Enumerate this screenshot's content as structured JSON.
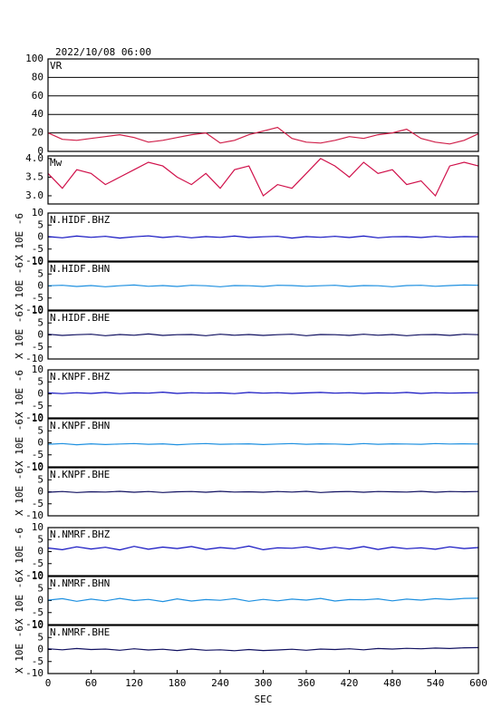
{
  "chart_data": [
    {
      "type": "line",
      "title": "2022/10/08 06:00",
      "label": "VR",
      "color": "#d0204a",
      "grid": true,
      "x": [
        0,
        20,
        40,
        60,
        80,
        100,
        120,
        140,
        160,
        180,
        200,
        220,
        240,
        260,
        280,
        300,
        320,
        340,
        360,
        380,
        400,
        420,
        440,
        460,
        480,
        500,
        520,
        540,
        560,
        580,
        600
      ],
      "values": [
        20,
        13,
        12,
        14,
        16,
        18,
        15,
        10,
        12,
        15,
        18,
        20,
        9,
        12,
        18,
        22,
        26,
        14,
        10,
        9,
        12,
        16,
        14,
        18,
        20,
        24,
        14,
        10,
        8,
        12,
        19
      ],
      "xlim": [
        0,
        600
      ],
      "ylim": [
        0,
        100
      ],
      "yticks": [
        0,
        20,
        40,
        60,
        80,
        100
      ]
    },
    {
      "type": "line",
      "label": "Mw",
      "color": "#d0104a",
      "x": [
        0,
        20,
        40,
        60,
        80,
        100,
        120,
        140,
        160,
        180,
        200,
        220,
        240,
        260,
        280,
        300,
        320,
        340,
        360,
        380,
        400,
        420,
        440,
        460,
        480,
        500,
        520,
        540,
        560,
        580,
        600
      ],
      "values": [
        3.6,
        3.2,
        3.7,
        3.6,
        3.3,
        3.5,
        3.7,
        3.9,
        3.8,
        3.5,
        3.3,
        3.6,
        3.2,
        3.7,
        3.8,
        3.0,
        3.3,
        3.2,
        3.6,
        4.0,
        3.8,
        3.5,
        3.9,
        3.6,
        3.7,
        3.3,
        3.4,
        3.0,
        3.8,
        3.9,
        3.8
      ],
      "xlim": [
        0,
        600
      ],
      "ylim": [
        2.78,
        4.07
      ],
      "yticks": [
        {
          "value": 3,
          "label": "3.0"
        },
        {
          "value": 3.5,
          "label": "3.5"
        },
        {
          "value": 4,
          "label": "4.0"
        }
      ]
    },
    {
      "type": "line",
      "label": "N.HIDF.BHZ",
      "y_label": "X 10E -6",
      "color": "#1010c0",
      "x": [
        0,
        20,
        40,
        60,
        80,
        100,
        120,
        140,
        160,
        180,
        200,
        220,
        240,
        260,
        280,
        300,
        320,
        340,
        360,
        380,
        400,
        420,
        440,
        460,
        480,
        500,
        520,
        540,
        560,
        580,
        600
      ],
      "values": [
        0.2,
        -0.3,
        0.4,
        -0.1,
        0.3,
        -0.4,
        0.1,
        0.5,
        -0.2,
        0.3,
        -0.3,
        0.2,
        -0.1,
        0.4,
        -0.2,
        0.1,
        0.3,
        -0.4,
        0.2,
        -0.1,
        0.3,
        -0.2,
        0.4,
        -0.3,
        0.1,
        0.2,
        -0.2,
        0.3,
        -0.1,
        0.2,
        0.1
      ],
      "xlim": [
        0,
        600
      ],
      "ylim": [
        -10,
        10
      ],
      "yticks": [
        -10,
        -5,
        0,
        5,
        10
      ]
    },
    {
      "type": "line",
      "label": "N.HIDF.BHN",
      "y_label": "X 10E -6",
      "color": "#1e90e0",
      "x": [
        0,
        20,
        40,
        60,
        80,
        100,
        120,
        140,
        160,
        180,
        200,
        220,
        240,
        260,
        280,
        300,
        320,
        340,
        360,
        380,
        400,
        420,
        440,
        460,
        480,
        500,
        520,
        540,
        560,
        580,
        600
      ],
      "values": [
        0.1,
        0.3,
        -0.2,
        0.2,
        -0.3,
        0.1,
        0.4,
        -0.1,
        0.2,
        -0.2,
        0.3,
        0.1,
        -0.3,
        0.2,
        0.1,
        -0.2,
        0.3,
        0.2,
        -0.1,
        0.1,
        0.3,
        -0.2,
        0.2,
        0.1,
        -0.3,
        0.2,
        0.3,
        -0.1,
        0.2,
        0.4,
        0.3
      ],
      "xlim": [
        0,
        600
      ],
      "ylim": [
        -10,
        10
      ],
      "yticks": [
        -10,
        -5,
        0,
        5,
        10
      ]
    },
    {
      "type": "line",
      "label": "N.HIDF.BHE",
      "y_label": "X 10E -6",
      "color": "#101060",
      "x": [
        0,
        20,
        40,
        60,
        80,
        100,
        120,
        140,
        160,
        180,
        200,
        220,
        240,
        260,
        280,
        300,
        320,
        340,
        360,
        380,
        400,
        420,
        440,
        460,
        480,
        500,
        520,
        540,
        560,
        580,
        600
      ],
      "values": [
        0.3,
        -0.2,
        0.1,
        0.3,
        -0.3,
        0.2,
        -0.1,
        0.4,
        -0.2,
        0.1,
        0.2,
        -0.3,
        0.3,
        -0.1,
        0.2,
        -0.2,
        0.1,
        0.3,
        -0.3,
        0.2,
        0.1,
        -0.2,
        0.3,
        -0.1,
        0.2,
        -0.3,
        0.1,
        0.2,
        -0.2,
        0.3,
        0.1
      ],
      "xlim": [
        0,
        600
      ],
      "ylim": [
        -10,
        10
      ],
      "yticks": [
        -10,
        -5,
        0,
        5,
        10
      ]
    },
    {
      "type": "line",
      "label": "N.KNPF.BHZ",
      "y_label": "X 10E -6",
      "color": "#1010c0",
      "x": [
        0,
        20,
        40,
        60,
        80,
        100,
        120,
        140,
        160,
        180,
        200,
        220,
        240,
        260,
        280,
        300,
        320,
        340,
        360,
        380,
        400,
        420,
        440,
        460,
        480,
        500,
        520,
        540,
        560,
        580,
        600
      ],
      "values": [
        0.4,
        0.1,
        0.5,
        0.2,
        0.6,
        0.1,
        0.4,
        0.3,
        0.7,
        0.2,
        0.5,
        0.3,
        0.4,
        0.1,
        0.6,
        0.3,
        0.5,
        0.2,
        0.4,
        0.6,
        0.3,
        0.5,
        0.2,
        0.4,
        0.3,
        0.6,
        0.2,
        0.5,
        0.3,
        0.4,
        0.5
      ],
      "xlim": [
        0,
        600
      ],
      "ylim": [
        -10,
        10
      ],
      "yticks": [
        -10,
        -5,
        0,
        5,
        10
      ]
    },
    {
      "type": "line",
      "label": "N.KNPF.BHN",
      "y_label": "X 10E -6",
      "color": "#1e90e0",
      "x": [
        0,
        20,
        40,
        60,
        80,
        100,
        120,
        140,
        160,
        180,
        200,
        220,
        240,
        260,
        280,
        300,
        320,
        340,
        360,
        380,
        400,
        420,
        440,
        460,
        480,
        500,
        520,
        540,
        560,
        580,
        600
      ],
      "values": [
        -0.6,
        -0.3,
        -0.8,
        -0.4,
        -0.7,
        -0.5,
        -0.3,
        -0.6,
        -0.4,
        -0.8,
        -0.5,
        -0.3,
        -0.6,
        -0.5,
        -0.4,
        -0.7,
        -0.5,
        -0.3,
        -0.6,
        -0.4,
        -0.5,
        -0.7,
        -0.3,
        -0.6,
        -0.4,
        -0.5,
        -0.6,
        -0.3,
        -0.5,
        -0.4,
        -0.5
      ],
      "xlim": [
        0,
        600
      ],
      "ylim": [
        -10,
        10
      ],
      "yticks": [
        -10,
        -5,
        0,
        5,
        10
      ]
    },
    {
      "type": "line",
      "label": "N.KNPF.BHE",
      "y_label": "X 10E -6",
      "color": "#101060",
      "x": [
        0,
        20,
        40,
        60,
        80,
        100,
        120,
        140,
        160,
        180,
        200,
        220,
        240,
        260,
        280,
        300,
        320,
        340,
        360,
        380,
        400,
        420,
        440,
        460,
        480,
        500,
        520,
        540,
        560,
        580,
        600
      ],
      "values": [
        -0.2,
        0.1,
        -0.3,
        0.0,
        -0.1,
        0.2,
        -0.2,
        0.1,
        -0.3,
        0.0,
        0.1,
        -0.2,
        0.2,
        -0.1,
        0.0,
        -0.2,
        0.1,
        -0.1,
        0.2,
        -0.3,
        0.0,
        0.1,
        -0.2,
        0.1,
        0.0,
        -0.1,
        0.2,
        -0.2,
        0.1,
        0.0,
        0.1
      ],
      "xlim": [
        0,
        600
      ],
      "ylim": [
        -10,
        10
      ],
      "yticks": [
        -10,
        -5,
        0,
        5,
        10
      ]
    },
    {
      "type": "line",
      "label": "N.NMRF.BHZ",
      "y_label": "X 10E -6",
      "color": "#1010c0",
      "x": [
        0,
        20,
        40,
        60,
        80,
        100,
        120,
        140,
        160,
        180,
        200,
        220,
        240,
        260,
        280,
        300,
        320,
        340,
        360,
        380,
        400,
        420,
        440,
        460,
        480,
        500,
        520,
        540,
        560,
        580,
        600
      ],
      "values": [
        1.5,
        0.8,
        2.0,
        1.1,
        1.8,
        0.7,
        2.2,
        1.0,
        1.9,
        1.3,
        2.1,
        0.9,
        1.7,
        1.2,
        2.3,
        0.8,
        1.6,
        1.4,
        2.0,
        1.0,
        1.8,
        1.1,
        2.1,
        0.9,
        1.9,
        1.2,
        1.6,
        1.0,
        2.0,
        1.3,
        1.7
      ],
      "xlim": [
        0,
        600
      ],
      "ylim": [
        -10,
        10
      ],
      "yticks": [
        -10,
        -5,
        0,
        5,
        10
      ]
    },
    {
      "type": "line",
      "label": "N.NMRF.BHN",
      "y_label": "X 10E -6",
      "color": "#1e90e0",
      "x": [
        0,
        20,
        40,
        60,
        80,
        100,
        120,
        140,
        160,
        180,
        200,
        220,
        240,
        260,
        280,
        300,
        320,
        340,
        360,
        380,
        400,
        420,
        440,
        460,
        480,
        500,
        520,
        540,
        560,
        580,
        600
      ],
      "values": [
        0.2,
        0.8,
        -0.3,
        0.6,
        -0.1,
        0.9,
        0.0,
        0.5,
        -0.4,
        0.7,
        -0.2,
        0.4,
        0.1,
        0.8,
        -0.3,
        0.5,
        -0.1,
        0.6,
        0.2,
        0.9,
        -0.2,
        0.4,
        0.3,
        0.7,
        -0.1,
        0.6,
        0.2,
        0.8,
        0.4,
        0.9,
        1.0
      ],
      "xlim": [
        0,
        600
      ],
      "ylim": [
        -10,
        10
      ],
      "yticks": [
        -10,
        -5,
        0,
        5,
        10
      ]
    },
    {
      "type": "line",
      "label": "N.NMRF.BHE",
      "y_label": "X 10E -6",
      "color": "#101060",
      "x": [
        0,
        20,
        40,
        60,
        80,
        100,
        120,
        140,
        160,
        180,
        200,
        220,
        240,
        260,
        280,
        300,
        320,
        340,
        360,
        380,
        400,
        420,
        440,
        460,
        480,
        500,
        520,
        540,
        560,
        580,
        600
      ],
      "values": [
        0.3,
        -0.1,
        0.4,
        0.0,
        0.2,
        -0.3,
        0.3,
        -0.2,
        0.1,
        -0.4,
        0.2,
        -0.3,
        -0.1,
        -0.5,
        0.0,
        -0.4,
        -0.2,
        0.1,
        -0.3,
        0.2,
        0.0,
        0.3,
        -0.1,
        0.4,
        0.2,
        0.5,
        0.3,
        0.6,
        0.4,
        0.7,
        0.8
      ],
      "xlim": [
        0,
        600
      ],
      "ylim": [
        -10,
        10
      ],
      "yticks": [
        -10,
        -5,
        0,
        5,
        10
      ],
      "xticks": [
        0,
        60,
        120,
        180,
        240,
        300,
        360,
        420,
        480,
        540,
        600
      ],
      "x_label": "SEC"
    }
  ]
}
